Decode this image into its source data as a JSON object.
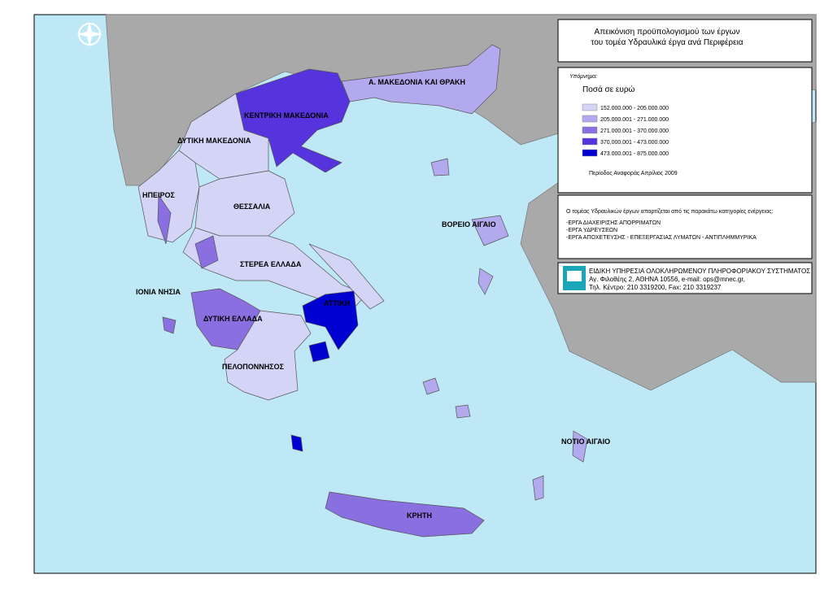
{
  "title": [
    "Απεικόνιση προϋπολογισμού των έργων",
    "του τομέα Υδραυλικά έργα ανά Περιφέρεια"
  ],
  "legend": {
    "heading": "Υπόμνημα:",
    "subtitle": "Ποσά σε ευρώ",
    "classes": [
      {
        "label": "152.000.000 - 205.000.000",
        "color": "#d4d4f7"
      },
      {
        "label": "205.000.001 - 271.000.000",
        "color": "#b3a9ee"
      },
      {
        "label": "271.000.001 - 370.000.000",
        "color": "#8a6fe0"
      },
      {
        "label": "370.000.001 - 473.000.000",
        "color": "#5533dd"
      },
      {
        "label": "473.000.001 - 875.000.000",
        "color": "#0000d0"
      }
    ],
    "period": "Περίοδος Αναφοράς Απρίλιος 2009"
  },
  "info": {
    "intro": "Ο τομέας Υδραυλικών έργων απαρτίζεται από τις παρακάτω κατηγορίες ενέργειας:",
    "items": [
      "-ΕΡΓΑ ΔΙΑΧΕΙΡΙΣΗΣ ΑΠΟΡΡΙΜΑΤΩΝ",
      "-ΕΡΓΑ ΥΔΡΕΥΣΕΩΝ",
      "-ΕΡΓΑ ΑΠΟΧΕΤΕΥΣΗΣ - ΕΠΕΞΕΡΓΑΣΙΑΣ ΛΥΜΑΤΩΝ - ΑΝΤΙΠΛΗΜΜΥΡΙΚΑ"
    ]
  },
  "agency": {
    "name": "ΕΙΔΙΚΗ ΥΠΗΡΕΣΙΑ ΟΛΟΚΛΗΡΩΜΕΝΟΥ ΠΛΗΡΟΦΟΡΙΑΚΟΥ ΣΥΣΤΗΜΑΤΟΣ",
    "address": "Αγ. Φιλοθέης 2, ΑΘΗΝΑ 10556, e-mail: ops@mnec.gr,",
    "phone": "Τηλ. Κέντρο: 210 3319200, Fax: 210 3319237"
  },
  "regions": [
    {
      "label": "Α. ΜΑΚΕΔΟΝΙΑ ΚΑΙ ΘΡΑΚΗ",
      "color": "#b3a9ee"
    },
    {
      "label": "ΚΕΝΤΡΙΚΗ ΜΑΚΕΔΟΝΙΑ",
      "color": "#5533dd"
    },
    {
      "label": "ΔΥΤΙΚΗ ΜΑΚΕΔΟΝΙΑ",
      "color": "#d4d4f7"
    },
    {
      "label": "ΗΠΕΙΡΟΣ",
      "color": "#d4d4f7"
    },
    {
      "label": "ΘΕΣΣΑΛΙΑ",
      "color": "#d4d4f7"
    },
    {
      "label": "ΣΤΕΡΕΑ ΕΛΛΑΔΑ",
      "color": "#d4d4f7"
    },
    {
      "label": "ΙΟΝΙΑ ΝΗΣΙΑ",
      "color": "#8a6fe0"
    },
    {
      "label": "ΔΥΤΙΚΗ ΕΛΛΑΔΑ",
      "color": "#8a6fe0"
    },
    {
      "label": "ΠΕΛΟΠΟΝΝΗΣΟΣ",
      "color": "#d4d4f7"
    },
    {
      "label": "ΑΤΤΙΚΗ",
      "color": "#0000d0"
    },
    {
      "label": "ΒΟΡΕΙΟ ΑΙΓΑΙΟ",
      "color": "#b3a9ee"
    },
    {
      "label": "ΝΟΤΙΟ ΑΙΓΑΙΟ",
      "color": "#b3a9ee"
    },
    {
      "label": "ΚΡΗΤΗ",
      "color": "#8a6fe0"
    }
  ]
}
